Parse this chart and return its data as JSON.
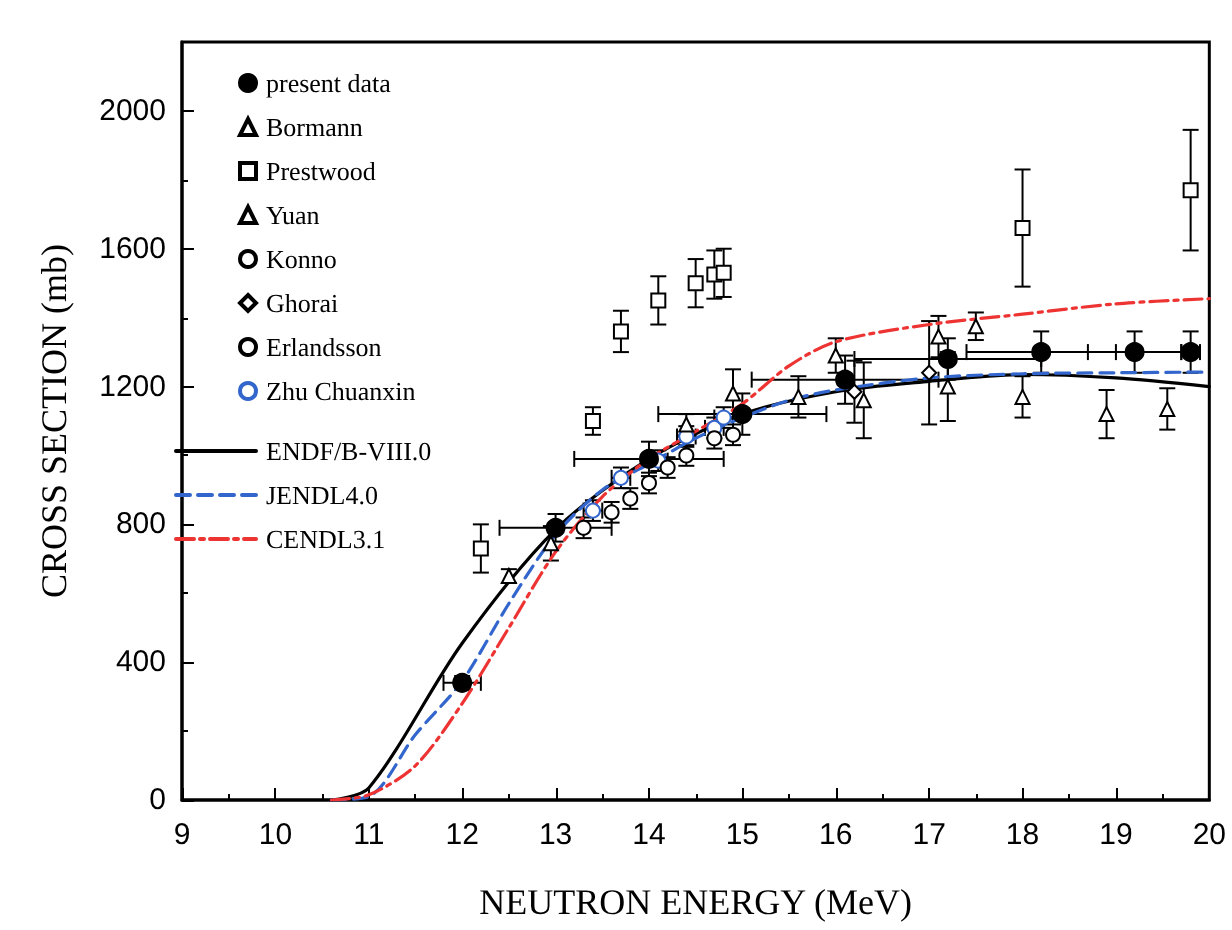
{
  "chart_data": {
    "type": "scatter",
    "xlabel": "NEUTRON ENERGY (MeV)",
    "ylabel": "CROSS SECTION (mb)",
    "xlim": [
      9,
      20
    ],
    "xticks": [
      9,
      10,
      11,
      12,
      13,
      14,
      15,
      16,
      17,
      18,
      19,
      20
    ],
    "ylim": [
      0,
      2200
    ],
    "yticks": [
      0,
      400,
      800,
      1200,
      1600,
      2000
    ],
    "legend": "top left",
    "grid": false,
    "series": [
      {
        "name": "present data",
        "marker": "circle",
        "color": "#000000",
        "x": [
          12.0,
          13.0,
          14.0,
          15.0,
          16.1,
          17.2,
          18.2,
          19.2,
          19.8
        ],
        "values": [
          340,
          790,
          990,
          1120,
          1220,
          1280,
          1300,
          1300,
          1300
        ],
        "errors": [
          20,
          40,
          50,
          60,
          70,
          60,
          60,
          60,
          60
        ],
        "xerrors": [
          0.2,
          0.6,
          0.8,
          0.9,
          1.0,
          1.0,
          0.8,
          0.5,
          0.1
        ]
      },
      {
        "name": "Bormann",
        "marker": "triangle",
        "color": "#000000",
        "x": [
          12.95,
          14.9,
          15.6,
          16.3,
          17.2,
          18.0,
          18.9,
          19.55
        ],
        "values": [
          745,
          1180,
          1170,
          1160,
          1200,
          1170,
          1120,
          1135
        ],
        "errors": [
          50,
          70,
          60,
          110,
          100,
          60,
          70,
          60
        ]
      },
      {
        "name": "Prestwood",
        "marker": "square",
        "color": "#000000",
        "x": [
          12.2,
          13.4,
          13.7,
          14.1,
          14.5,
          14.7,
          14.8,
          18.0,
          19.8
        ],
        "values": [
          730,
          1100,
          1360,
          1450,
          1500,
          1525,
          1530,
          1660,
          1770
        ],
        "errors": [
          70,
          40,
          60,
          70,
          70,
          70,
          70,
          170,
          175
        ]
      },
      {
        "name": "Yuan",
        "marker": "triangle",
        "color": "#000000",
        "x": [
          12.5,
          14.4,
          16.0,
          17.1,
          17.5
        ],
        "values": [
          650,
          1090,
          1290,
          1345,
          1375
        ],
        "errors": [
          20,
          30,
          50,
          60,
          40
        ]
      },
      {
        "name": "Konno",
        "marker": "circle",
        "color": "#000000",
        "x": [
          13.3,
          13.6,
          13.8,
          14.0
        ],
        "values": [
          790,
          835,
          875,
          920
        ],
        "errors": [
          30,
          30,
          30,
          30
        ]
      },
      {
        "name": "Ghorai",
        "marker": "diamond",
        "color": "#000000",
        "x": [
          16.2,
          17.0
        ],
        "values": [
          1185,
          1240
        ],
        "errors": [
          90,
          150
        ]
      },
      {
        "name": "Erlandsson",
        "marker": "circle",
        "color": "#000000",
        "x": [
          14.2,
          14.4,
          14.7,
          14.9
        ],
        "values": [
          965,
          1000,
          1050,
          1060
        ],
        "errors": [
          30,
          30,
          30,
          30
        ]
      },
      {
        "name": "Zhu Chuanxin",
        "marker": "circle",
        "color": "#3366cc",
        "x": [
          13.4,
          13.7,
          14.1,
          14.4,
          14.7,
          14.8
        ],
        "values": [
          840,
          935,
          985,
          1055,
          1080,
          1110
        ],
        "errors": [
          30,
          30,
          30,
          30,
          30,
          30
        ],
        "xerrors": [
          0.1,
          0.1,
          0.1,
          0.1,
          0.1,
          0.1
        ]
      },
      {
        "name": "ENDF/B-VIII.0",
        "type": "line",
        "marker": "none",
        "line_style": "solid",
        "color": "#000000",
        "x": [
          10.6,
          11.0,
          12.0,
          13.0,
          14.0,
          15.0,
          16.0,
          17.0,
          18.0,
          19.0,
          20.0
        ],
        "values": [
          0,
          35,
          455,
          785,
          990,
          1120,
          1185,
          1215,
          1235,
          1225,
          1200
        ]
      },
      {
        "name": "JENDL4.0",
        "type": "line",
        "marker": "none",
        "line_style": "dashed",
        "color": "#3366cc",
        "x": [
          10.6,
          11.0,
          11.5,
          12.0,
          12.5,
          13.0,
          13.5,
          14.0,
          14.5,
          15.0,
          15.5,
          16.0,
          17.0,
          18.0,
          19.0,
          20.0
        ],
        "values": [
          0,
          10,
          190,
          345,
          570,
          770,
          900,
          975,
          1050,
          1110,
          1160,
          1190,
          1225,
          1237,
          1240,
          1242
        ]
      },
      {
        "name": "CENDL3.1",
        "type": "line",
        "marker": "none",
        "line_style": "dashdot",
        "color": "#ee3333",
        "x": [
          10.6,
          11.0,
          11.5,
          12.0,
          12.5,
          13.0,
          13.5,
          14.0,
          14.5,
          15.0,
          15.5,
          16.0,
          17.0,
          18.0,
          19.0,
          20.0
        ],
        "values": [
          0,
          15,
          100,
          280,
          500,
          720,
          880,
          990,
          1070,
          1150,
          1260,
          1330,
          1380,
          1410,
          1440,
          1455
        ]
      }
    ]
  }
}
